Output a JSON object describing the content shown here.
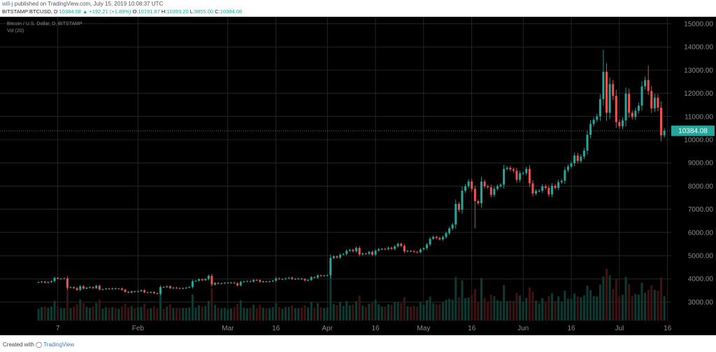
{
  "header": {
    "author": "will-j",
    "published": " published on TradingView.com, July 15, 2019 10:08:37 UTC",
    "symbol": "BITSTAMP:BTCUSD, D",
    "last": "10384.08",
    "change": "▲ +192.21 (+1.89%)",
    "o_label": "O:",
    "o_value": "10191.87",
    "h_label": "H:",
    "h_value": "10393.20",
    "l_label": "L:",
    "l_value": "9855.00",
    "c_label": "C:",
    "c_value": "10384.08"
  },
  "legend": {
    "series": "Bitcoin / U.S. Dollar, D, BITSTAMP",
    "volume": "Vol (20)"
  },
  "footer": {
    "created_with": "Created with",
    "brand": "TradingView"
  },
  "colors": {
    "background": "#000000",
    "grid": "#3a3a3a",
    "up": "#26a69a",
    "down": "#ef5350",
    "axis_text": "#8a8a8a",
    "last_price_bg": "#26a69a"
  },
  "chart_data": {
    "type": "candlestick",
    "yscale": "linear",
    "ylim": [
      2200,
      15300
    ],
    "grid": true,
    "y_ticks": [
      "3000.00",
      "4000.00",
      "5000.00",
      "6000.00",
      "7000.00",
      "8000.00",
      "9000.00",
      "10000.00",
      "11000.00",
      "12000.00",
      "13000.00",
      "14000.00",
      "15000.00"
    ],
    "y_tick_values": [
      3000,
      4000,
      5000,
      6000,
      7000,
      8000,
      9000,
      10000,
      11000,
      12000,
      13000,
      14000,
      15000
    ],
    "x_ticks": [
      {
        "label": "7",
        "date": "2019-01-07"
      },
      {
        "label": "Feb",
        "date": "2019-02-01"
      },
      {
        "label": "Mar",
        "date": "2019-03-01"
      },
      {
        "label": "16",
        "date": "2019-03-16"
      },
      {
        "label": "Apr",
        "date": "2019-04-01"
      },
      {
        "label": "16",
        "date": "2019-04-16"
      },
      {
        "label": "May",
        "date": "2019-05-01"
      },
      {
        "label": "16",
        "date": "2019-05-16"
      },
      {
        "label": "Jun",
        "date": "2019-06-01"
      },
      {
        "label": "16",
        "date": "2019-06-16"
      },
      {
        "label": "Jul",
        "date": "2019-07-01"
      },
      {
        "label": "16",
        "date": "2019-07-16"
      }
    ],
    "last_price": 10384.08,
    "daily_close": [
      [
        "2019-01-01",
        3850
      ],
      [
        "2019-01-02",
        3880
      ],
      [
        "2019-01-03",
        3840
      ],
      [
        "2019-01-04",
        3860
      ],
      [
        "2019-01-05",
        3900
      ],
      [
        "2019-01-06",
        4040
      ],
      [
        "2019-01-07",
        4000
      ],
      [
        "2019-01-08",
        4010
      ],
      [
        "2019-01-09",
        4020
      ],
      [
        "2019-01-10",
        3620
      ],
      [
        "2019-01-11",
        3640
      ],
      [
        "2019-01-12",
        3600
      ],
      [
        "2019-01-13",
        3520
      ],
      [
        "2019-01-14",
        3680
      ],
      [
        "2019-01-15",
        3580
      ],
      [
        "2019-01-16",
        3620
      ],
      [
        "2019-01-17",
        3640
      ],
      [
        "2019-01-18",
        3600
      ],
      [
        "2019-01-19",
        3700
      ],
      [
        "2019-01-20",
        3540
      ],
      [
        "2019-01-21",
        3550
      ],
      [
        "2019-01-22",
        3580
      ],
      [
        "2019-01-23",
        3560
      ],
      [
        "2019-01-24",
        3590
      ],
      [
        "2019-01-25",
        3570
      ],
      [
        "2019-01-26",
        3580
      ],
      [
        "2019-01-27",
        3530
      ],
      [
        "2019-01-28",
        3440
      ],
      [
        "2019-01-29",
        3410
      ],
      [
        "2019-01-30",
        3460
      ],
      [
        "2019-01-31",
        3440
      ],
      [
        "2019-02-01",
        3470
      ],
      [
        "2019-02-02",
        3510
      ],
      [
        "2019-02-03",
        3420
      ],
      [
        "2019-02-04",
        3410
      ],
      [
        "2019-02-05",
        3430
      ],
      [
        "2019-02-06",
        3380
      ],
      [
        "2019-02-07",
        3360
      ],
      [
        "2019-02-08",
        3650
      ],
      [
        "2019-02-09",
        3640
      ],
      [
        "2019-02-10",
        3680
      ],
      [
        "2019-02-11",
        3600
      ],
      [
        "2019-02-12",
        3620
      ],
      [
        "2019-02-13",
        3600
      ],
      [
        "2019-02-14",
        3580
      ],
      [
        "2019-02-15",
        3600
      ],
      [
        "2019-02-16",
        3620
      ],
      [
        "2019-02-17",
        3650
      ],
      [
        "2019-02-18",
        3900
      ],
      [
        "2019-02-19",
        3920
      ],
      [
        "2019-02-20",
        3980
      ],
      [
        "2019-02-21",
        3940
      ],
      [
        "2019-02-22",
        3990
      ],
      [
        "2019-02-23",
        4130
      ],
      [
        "2019-02-24",
        3750
      ],
      [
        "2019-02-25",
        3820
      ],
      [
        "2019-02-26",
        3800
      ],
      [
        "2019-02-27",
        3810
      ],
      [
        "2019-02-28",
        3830
      ],
      [
        "2019-03-01",
        3830
      ],
      [
        "2019-03-02",
        3840
      ],
      [
        "2019-03-03",
        3810
      ],
      [
        "2019-03-04",
        3720
      ],
      [
        "2019-03-05",
        3870
      ],
      [
        "2019-03-06",
        3890
      ],
      [
        "2019-03-07",
        3900
      ],
      [
        "2019-03-08",
        3880
      ],
      [
        "2019-03-09",
        3950
      ],
      [
        "2019-03-10",
        3940
      ],
      [
        "2019-03-11",
        3870
      ],
      [
        "2019-03-12",
        3890
      ],
      [
        "2019-03-13",
        3880
      ],
      [
        "2019-03-14",
        3890
      ],
      [
        "2019-03-15",
        3920
      ],
      [
        "2019-03-16",
        4020
      ],
      [
        "2019-03-17",
        3990
      ],
      [
        "2019-03-18",
        3990
      ],
      [
        "2019-03-19",
        4020
      ],
      [
        "2019-03-20",
        4050
      ],
      [
        "2019-03-21",
        3990
      ],
      [
        "2019-03-22",
        4000
      ],
      [
        "2019-03-23",
        4010
      ],
      [
        "2019-03-24",
        3990
      ],
      [
        "2019-03-25",
        3930
      ],
      [
        "2019-03-26",
        3950
      ],
      [
        "2019-03-27",
        4070
      ],
      [
        "2019-03-28",
        4050
      ],
      [
        "2019-03-29",
        4150
      ],
      [
        "2019-03-30",
        4130
      ],
      [
        "2019-03-31",
        4140
      ],
      [
        "2019-04-01",
        4160
      ],
      [
        "2019-04-02",
        4900
      ],
      [
        "2019-04-03",
        4970
      ],
      [
        "2019-04-04",
        4920
      ],
      [
        "2019-04-05",
        5040
      ],
      [
        "2019-04-06",
        5070
      ],
      [
        "2019-04-07",
        5210
      ],
      [
        "2019-04-08",
        5250
      ],
      [
        "2019-04-09",
        5190
      ],
      [
        "2019-04-10",
        5330
      ],
      [
        "2019-04-11",
        5050
      ],
      [
        "2019-04-12",
        5090
      ],
      [
        "2019-04-13",
        5080
      ],
      [
        "2019-04-14",
        5160
      ],
      [
        "2019-04-15",
        5040
      ],
      [
        "2019-04-16",
        5220
      ],
      [
        "2019-04-17",
        5280
      ],
      [
        "2019-04-18",
        5290
      ],
      [
        "2019-04-19",
        5280
      ],
      [
        "2019-04-20",
        5340
      ],
      [
        "2019-04-21",
        5290
      ],
      [
        "2019-04-22",
        5400
      ],
      [
        "2019-04-23",
        5510
      ],
      [
        "2019-04-24",
        5420
      ],
      [
        "2019-04-25",
        5180
      ],
      [
        "2019-04-26",
        5200
      ],
      [
        "2019-04-27",
        5190
      ],
      [
        "2019-04-28",
        5160
      ],
      [
        "2019-04-29",
        5150
      ],
      [
        "2019-04-30",
        5270
      ],
      [
        "2019-05-01",
        5320
      ],
      [
        "2019-05-02",
        5480
      ],
      [
        "2019-05-03",
        5730
      ],
      [
        "2019-05-04",
        5810
      ],
      [
        "2019-05-05",
        5760
      ],
      [
        "2019-05-06",
        5700
      ],
      [
        "2019-05-07",
        5800
      ],
      [
        "2019-05-08",
        5970
      ],
      [
        "2019-05-09",
        6170
      ],
      [
        "2019-05-10",
        6340
      ],
      [
        "2019-05-11",
        7230
      ],
      [
        "2019-05-12",
        6980
      ],
      [
        "2019-05-13",
        7800
      ],
      [
        "2019-05-14",
        7990
      ],
      [
        "2019-05-15",
        8200
      ],
      [
        "2019-05-16",
        7880
      ],
      [
        "2019-05-17",
        7350
      ],
      [
        "2019-05-18",
        7260
      ],
      [
        "2019-05-19",
        8190
      ],
      [
        "2019-05-20",
        7990
      ],
      [
        "2019-05-21",
        7950
      ],
      [
        "2019-05-22",
        7620
      ],
      [
        "2019-05-23",
        7880
      ],
      [
        "2019-05-24",
        7990
      ],
      [
        "2019-05-25",
        8060
      ],
      [
        "2019-05-26",
        8740
      ],
      [
        "2019-05-27",
        8790
      ],
      [
        "2019-05-28",
        8720
      ],
      [
        "2019-05-29",
        8660
      ],
      [
        "2019-05-30",
        8270
      ],
      [
        "2019-05-31",
        8550
      ],
      [
        "2019-06-01",
        8560
      ],
      [
        "2019-06-02",
        8740
      ],
      [
        "2019-06-03",
        8120
      ],
      [
        "2019-06-04",
        7680
      ],
      [
        "2019-06-05",
        7790
      ],
      [
        "2019-06-06",
        7800
      ],
      [
        "2019-06-07",
        7990
      ],
      [
        "2019-06-08",
        7920
      ],
      [
        "2019-06-09",
        7640
      ],
      [
        "2019-06-10",
        8010
      ],
      [
        "2019-06-11",
        7920
      ],
      [
        "2019-06-12",
        8170
      ],
      [
        "2019-06-13",
        8230
      ],
      [
        "2019-06-14",
        8690
      ],
      [
        "2019-06-15",
        8840
      ],
      [
        "2019-06-16",
        8980
      ],
      [
        "2019-06-17",
        9320
      ],
      [
        "2019-06-18",
        9080
      ],
      [
        "2019-06-19",
        9270
      ],
      [
        "2019-06-20",
        9530
      ],
      [
        "2019-06-21",
        10210
      ],
      [
        "2019-06-22",
        10680
      ],
      [
        "2019-06-23",
        10860
      ],
      [
        "2019-06-24",
        11010
      ],
      [
        "2019-06-25",
        11750
      ],
      [
        "2019-06-26",
        12930
      ],
      [
        "2019-06-27",
        11160
      ],
      [
        "2019-06-28",
        12400
      ],
      [
        "2019-06-29",
        11890
      ],
      [
        "2019-06-30",
        10760
      ],
      [
        "2019-07-01",
        10580
      ],
      [
        "2019-07-02",
        10830
      ],
      [
        "2019-07-03",
        11980
      ],
      [
        "2019-07-04",
        11160
      ],
      [
        "2019-07-05",
        10980
      ],
      [
        "2019-07-06",
        11250
      ],
      [
        "2019-07-07",
        11470
      ],
      [
        "2019-07-08",
        12300
      ],
      [
        "2019-07-09",
        12570
      ],
      [
        "2019-07-10",
        12100
      ],
      [
        "2019-07-11",
        11350
      ],
      [
        "2019-07-12",
        11810
      ],
      [
        "2019-07-13",
        11380
      ],
      [
        "2019-07-14",
        10190
      ],
      [
        "2019-07-15",
        10384.08
      ]
    ],
    "notable_wicks": [
      {
        "date": "2019-05-17",
        "low": 6180
      },
      {
        "date": "2019-06-26",
        "high": 13880
      },
      {
        "date": "2019-07-10",
        "high": 13200
      }
    ]
  }
}
